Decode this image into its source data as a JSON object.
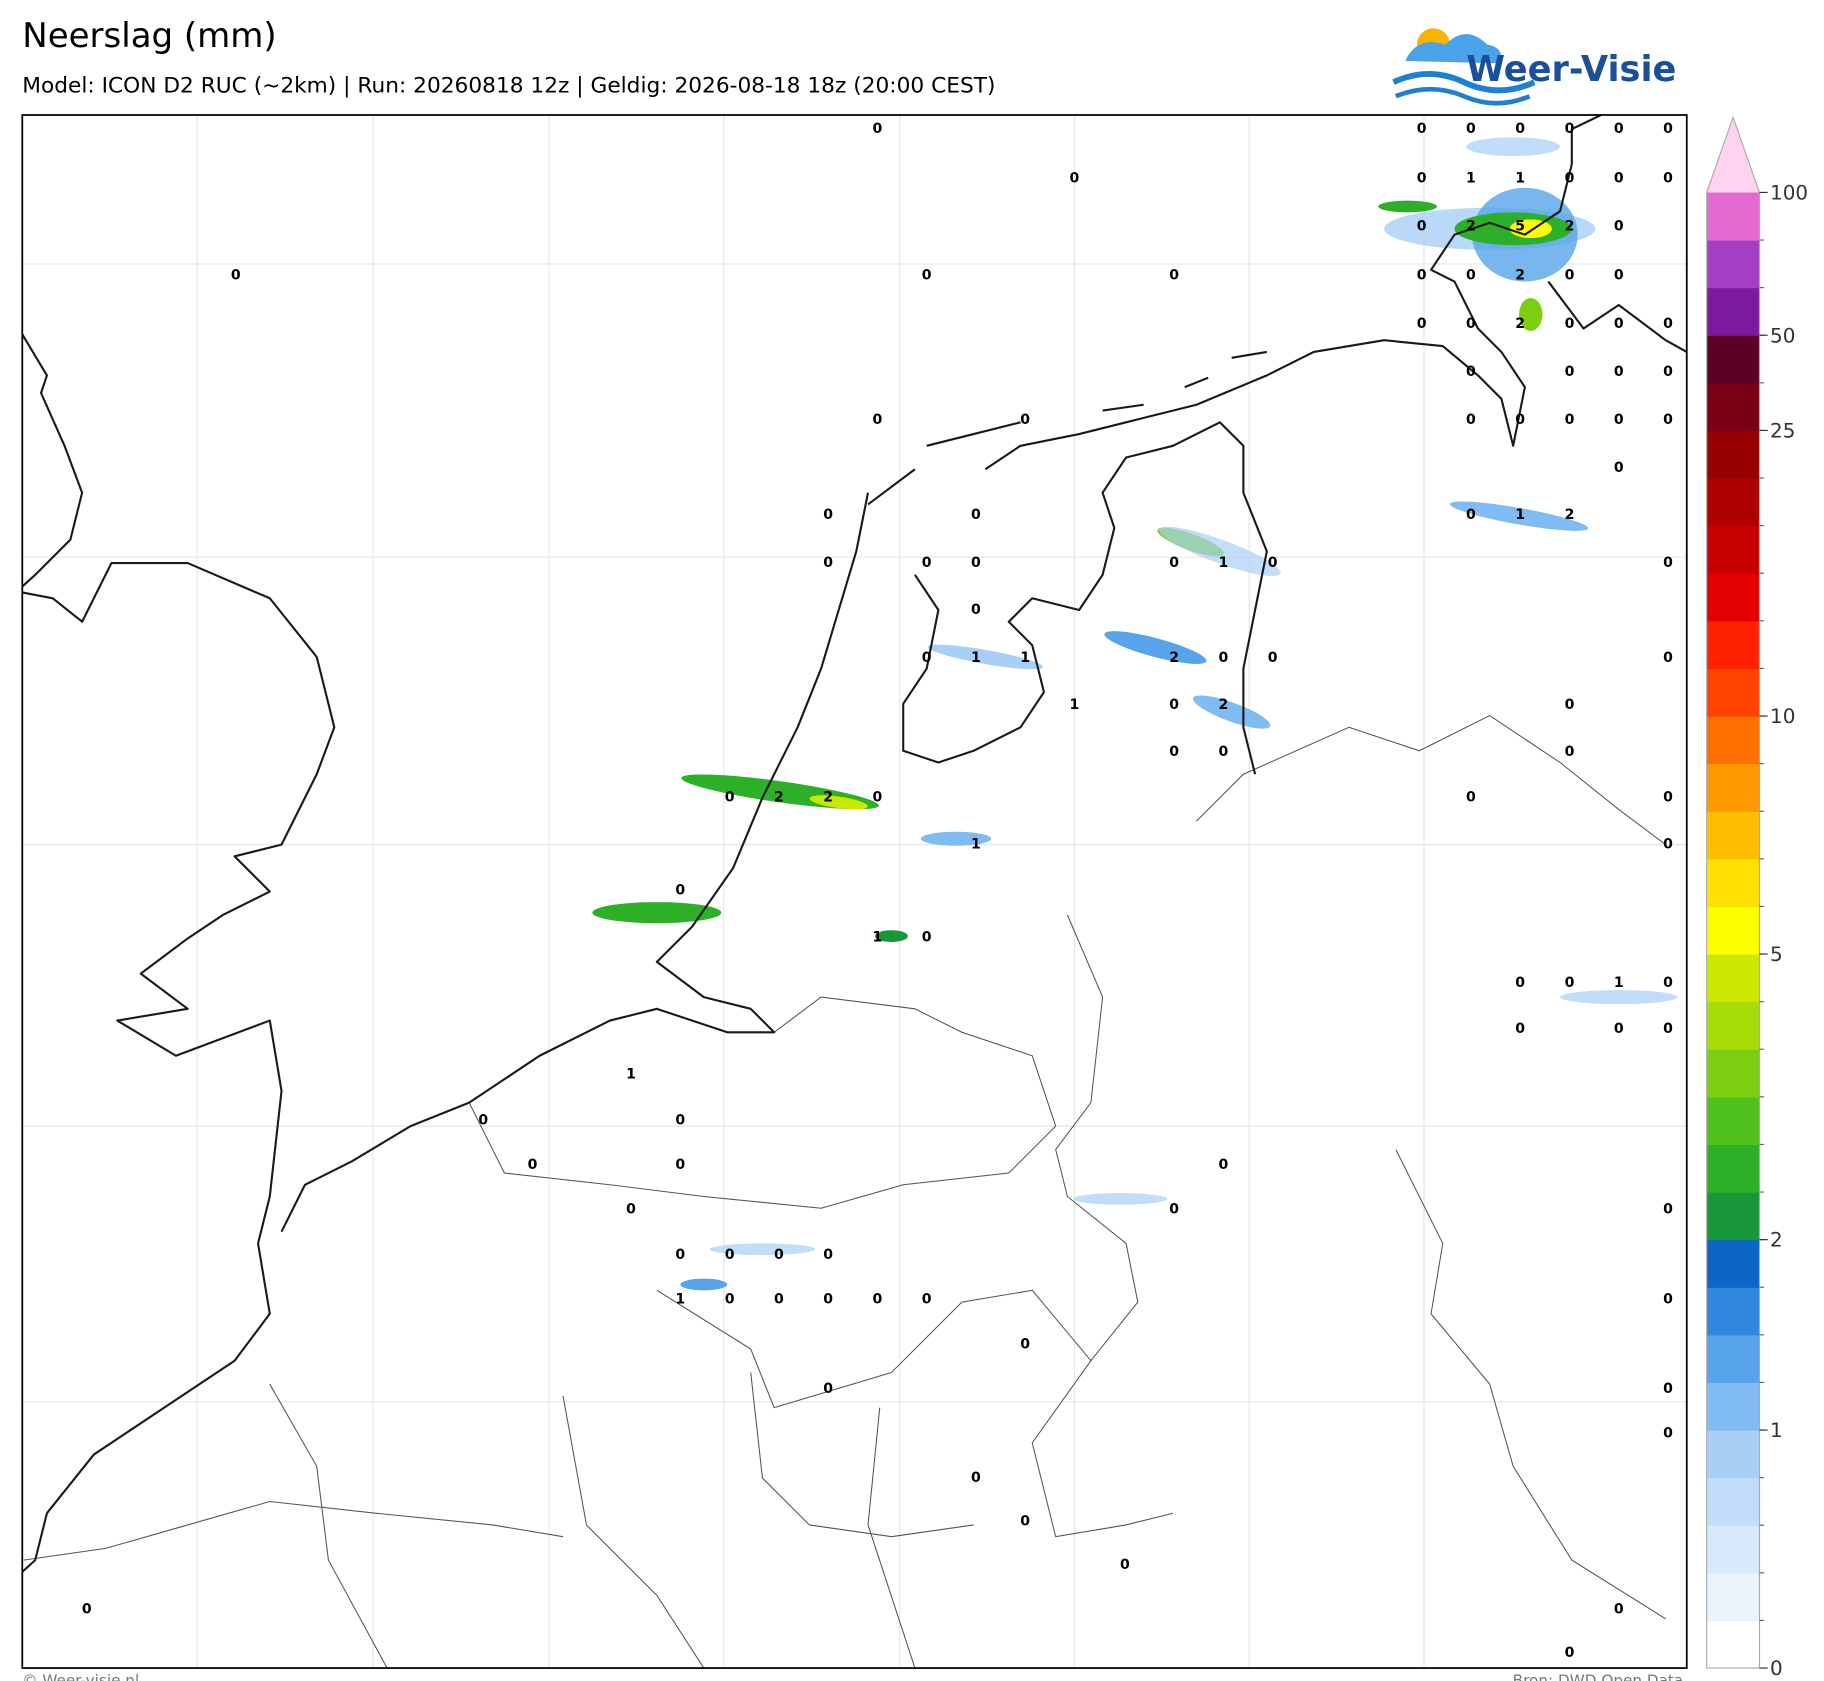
{
  "header": {
    "title": "Neerslag (mm)",
    "subtitle": "Model: ICON D2 RUC (~2km)  |  Run: 20260818 12z  |  Geldig: 2026-08-18 18z (20:00 CEST)",
    "logo": "Weer-Visie"
  },
  "footer": {
    "left": "© Weer-visie.nl",
    "right": "Bron: DWD Open Data"
  },
  "station_values": [
    [
      0,
      0,
      0,
      0,
      0,
      0,
      0
    ],
    [
      0,
      0,
      1,
      1,
      0,
      0,
      0
    ],
    [
      0,
      2,
      5,
      2,
      0
    ],
    [
      0,
      0,
      0,
      0,
      0,
      2,
      0,
      0
    ],
    [
      0,
      0,
      2,
      0,
      0,
      0
    ],
    [
      0,
      0,
      0,
      0
    ],
    [
      0,
      0,
      0,
      0,
      0,
      0,
      0
    ],
    [
      0
    ],
    [
      0,
      0,
      0,
      1,
      2
    ],
    [
      0,
      0,
      0,
      0,
      1,
      0,
      0
    ],
    [
      0
    ],
    [
      0,
      1,
      1,
      2,
      0,
      0,
      0
    ],
    [
      1,
      0,
      2,
      0
    ],
    [
      0,
      0,
      0
    ],
    [
      0,
      2,
      2,
      0,
      0,
      0
    ],
    [
      1,
      0
    ],
    [
      0
    ],
    [
      1,
      0
    ],
    [
      0,
      0,
      1,
      0
    ],
    [
      0,
      0,
      0
    ],
    [
      1
    ],
    [
      0,
      0
    ],
    [
      0,
      0,
      0
    ],
    [
      0,
      0,
      0
    ],
    [
      0,
      0,
      0,
      0
    ],
    [
      1,
      0,
      0,
      0,
      0,
      0,
      0
    ],
    [
      0
    ],
    [
      0,
      0
    ],
    [
      0
    ],
    [
      0
    ],
    [
      0
    ],
    [
      0
    ],
    [
      0,
      0
    ],
    [
      0
    ]
  ],
  "colorbar": {
    "colors": [
      "#ffffff",
      "#eaf3fc",
      "#d8e9fb",
      "#c2ddf9",
      "#a8d0f7",
      "#80bcf1",
      "#58a4ea",
      "#2f88de",
      "#0b66c6",
      "#17963a",
      "#2eaf28",
      "#4fc11c",
      "#7ccf10",
      "#a6dc08",
      "#cbe900",
      "#ffff00",
      "#ffe000",
      "#ffbf00",
      "#ff9900",
      "#ff7000",
      "#ff4200",
      "#ff2200",
      "#e20000",
      "#c80000",
      "#ae0000",
      "#960000",
      "#7a0014",
      "#5a0022",
      "#7a1aa0",
      "#a43ec4",
      "#e46ad2"
    ],
    "extend_color": "#ffd2ef",
    "ticks": [
      0,
      1,
      2,
      5,
      10,
      25,
      50,
      100
    ]
  }
}
